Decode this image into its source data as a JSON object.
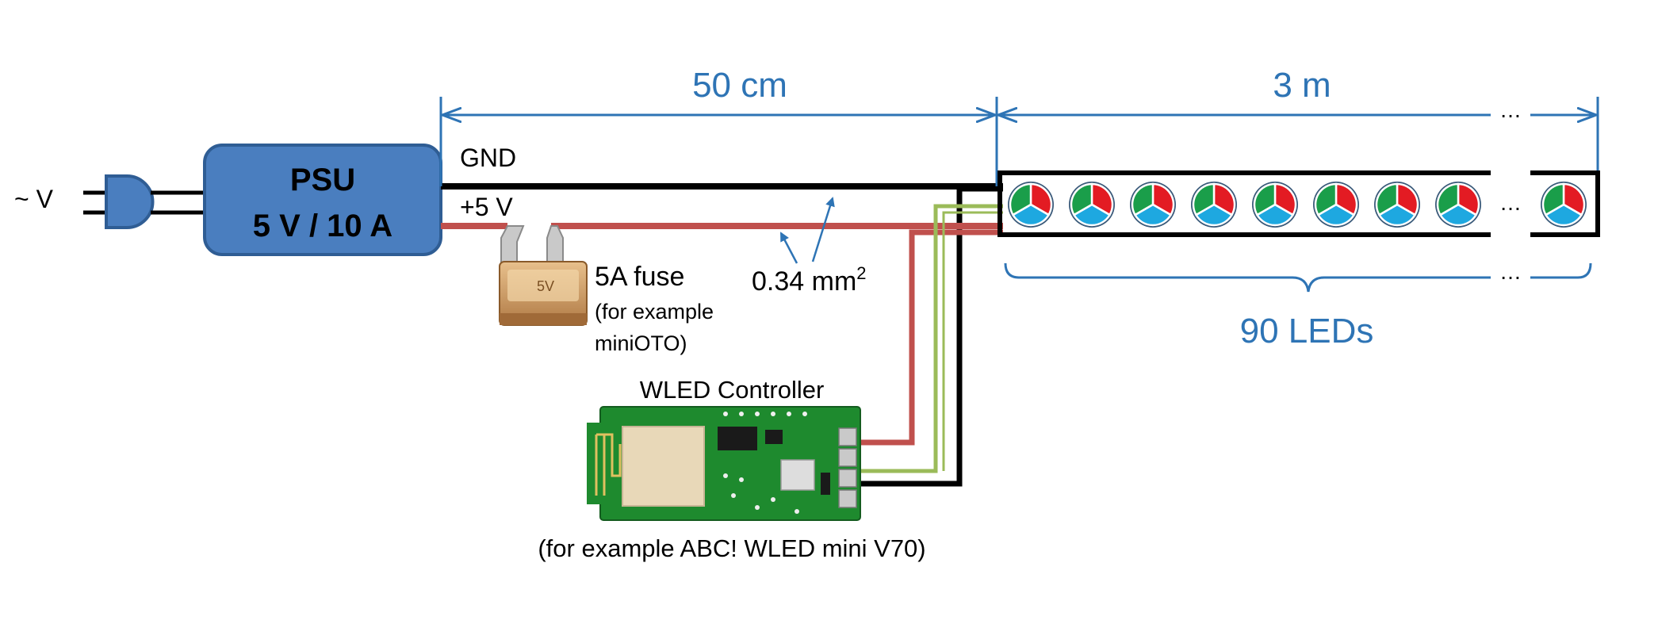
{
  "labels": {
    "mains": "~ V",
    "psu_name": "PSU",
    "psu_rating": "5 V / 10 A",
    "gnd": "GND",
    "plus5v": "+5 V",
    "wire_cross_section": "0.34 mm",
    "wire_cross_section_sup": "2",
    "fuse_title": "5A fuse",
    "fuse_note_line1": "(for example",
    "fuse_note_line2": "miniOTO)",
    "controller_title": "WLED Controller",
    "controller_note": "(for example ABC! WLED mini V70)",
    "dim_wire_length": "50 cm",
    "dim_strip_length": "3 m",
    "led_count": "90 LEDs",
    "ellipsis": "…",
    "fuse_marking": "5V"
  },
  "colors": {
    "annotation_blue": "#2e74b5",
    "psu_fill": "#4a7ebf",
    "psu_stroke": "#2f5d94",
    "wire_gnd": "#000000",
    "wire_plus5v": "#c0504d",
    "wire_data": "#9bbb59",
    "led_red": "#e31b23",
    "led_green": "#1a9e4a",
    "led_blue": "#1ea8e0",
    "pcb_green": "#1e8a2e",
    "fuse_amber": "#d9a56a"
  },
  "strip": {
    "visible_led_count": 9
  }
}
